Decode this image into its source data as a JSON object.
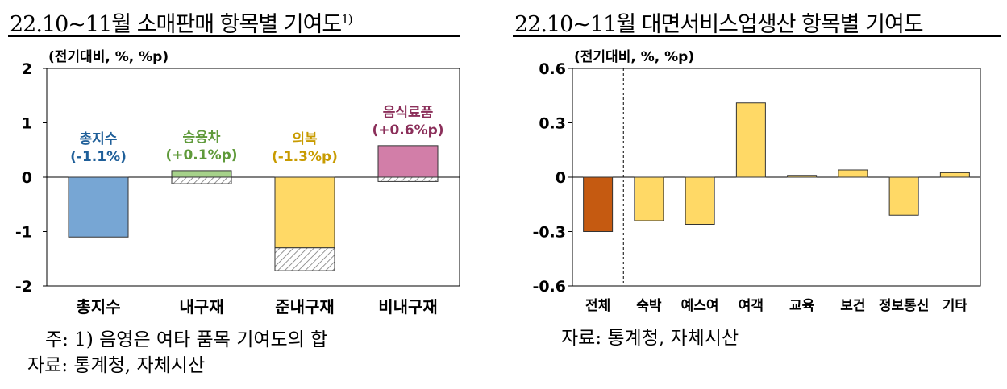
{
  "left": {
    "title": "22.10~11월 소매판매 항목별 기여도",
    "title_sup": "1)",
    "note": "주: 1) 음영은 여타 품목 기여도의 합",
    "source": "자료: 통계청, 자체시산",
    "chart_data": {
      "type": "bar",
      "unit_label": "(전기대비, %, %p)",
      "categories": [
        "총지수",
        "내구재",
        "준내구재",
        "비내구재"
      ],
      "ylim": [
        -2,
        2
      ],
      "yticks": [
        "2",
        "1",
        "0",
        "-1",
        "-2"
      ],
      "series": [
        {
          "values": [
            -1.1,
            0.12,
            -1.3,
            0.58
          ]
        },
        {
          "values": [
            0,
            -0.12,
            -0.42,
            -0.08
          ]
        }
      ],
      "annotations": [
        {
          "label": "총지수",
          "value": "(-1.1%)",
          "color": "#1f5f99"
        },
        {
          "label": "승용차",
          "value": "(+0.1%p)",
          "color": "#5f9a3a"
        },
        {
          "label": "의복",
          "value": "(-1.3%p)",
          "color": "#c89b00"
        },
        {
          "label": "음식료품",
          "value": "(+0.6%p)",
          "color": "#8b2f5a"
        }
      ],
      "colors": [
        "#77a6d4",
        "#a6d28a",
        "#ffd966",
        "#d27ea8"
      ]
    }
  },
  "right": {
    "title": "22.10~11월 대면서비스업생산 항목별 기여도",
    "source": "자료: 통계청, 자체시산",
    "chart_data": {
      "type": "bar",
      "unit_label": "(전기대비, %, %p)",
      "categories": [
        "전체",
        "숙박",
        "예스여",
        "여객",
        "교육",
        "보건",
        "정보통신",
        "기타"
      ],
      "values": [
        -0.3,
        -0.24,
        -0.26,
        0.41,
        0.01,
        0.04,
        -0.21,
        0.025
      ],
      "ylim": [
        -0.6,
        0.6
      ],
      "yticks": [
        "0.6",
        "0.3",
        "0",
        "-0.3",
        "-0.6"
      ],
      "colors": [
        "#c55a11",
        "#ffd966"
      ]
    }
  }
}
